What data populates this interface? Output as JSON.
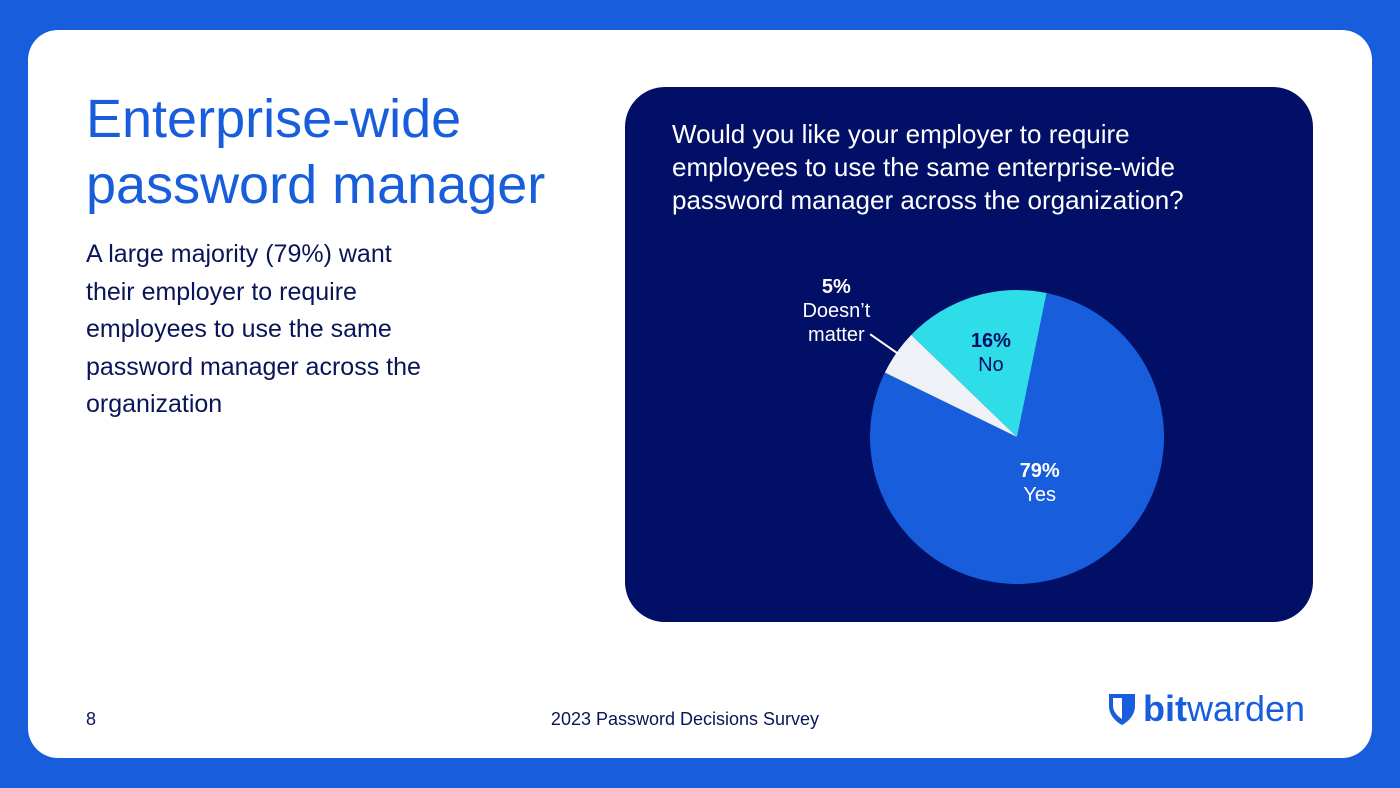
{
  "slide": {
    "title_lines": [
      "Enterprise-wide",
      "password manager"
    ],
    "body_lines": [
      "A large majority (79%) want",
      "their employer to require",
      "employees to use the same",
      "password manager across the",
      "organization"
    ],
    "page_number": "8",
    "footer": "2023 Password Decisions Survey",
    "logo": [
      "bit",
      "warden"
    ]
  },
  "chart_data": {
    "type": "pie",
    "title_lines": [
      "Would you like your employer to require",
      "employees to use the same enterprise-wide",
      "password manager across the organization?"
    ],
    "categories": [
      "Yes",
      "Doesn’t matter",
      "No"
    ],
    "values": [
      79,
      5,
      16
    ],
    "value_labels": [
      "79%",
      "5%",
      "16%"
    ],
    "colors": [
      "#175ddc",
      "#eef2f7",
      "#2fdde8"
    ]
  }
}
